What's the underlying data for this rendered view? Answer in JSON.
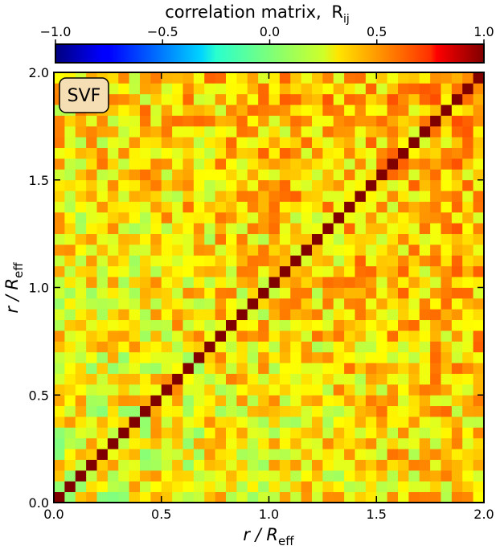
{
  "chart_data": {
    "type": "heatmap",
    "title": "correlation matrix,",
    "title_symbol": "R",
    "title_symbol_sub": "ij",
    "badge": "SVF",
    "xlabel": "r / R",
    "xlabel_sub": "eff",
    "ylabel": "r / R",
    "ylabel_sub": "eff",
    "xlim": [
      0.0,
      2.0
    ],
    "ylim": [
      0.0,
      2.0
    ],
    "xticks": [
      "0.0",
      "0.5",
      "1.0",
      "1.5",
      "2.0"
    ],
    "yticks": [
      "0.0",
      "0.5",
      "1.0",
      "1.5",
      "2.0"
    ],
    "colorbar": {
      "colormap": "jet",
      "range": [
        -1.0,
        1.0
      ],
      "ticks": [
        "−1.0",
        "−0.5",
        "0.0",
        "0.5",
        "1.0"
      ]
    },
    "grid_size": 40,
    "diagonal_value": 1.0,
    "typical_offdiagonal_range": [
      0.0,
      0.6
    ],
    "grid": false
  }
}
